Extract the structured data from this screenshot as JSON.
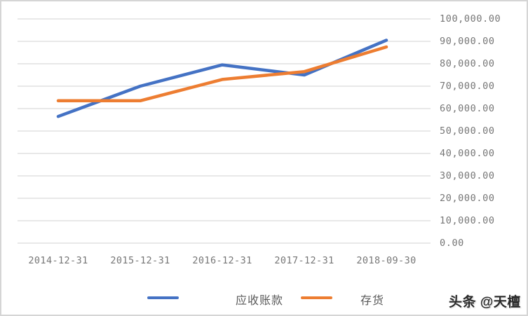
{
  "chart_data": {
    "type": "line",
    "title": "",
    "categories": [
      "2014-12-31",
      "2015-12-31",
      "2016-12-31",
      "2017-12-31",
      "2018-09-30"
    ],
    "series": [
      {
        "name": "应收账款",
        "color": "#4472C4",
        "values": [
          56500,
          70000,
          79500,
          75000,
          90500
        ]
      },
      {
        "name": "存货",
        "color": "#ED7D31",
        "values": [
          63500,
          63500,
          73000,
          76500,
          87500
        ]
      }
    ],
    "y_axis": {
      "side": "right",
      "min": 0,
      "max": 100000,
      "step": 10000,
      "tick_labels": [
        "0.00",
        "10,000.00",
        "20,000.00",
        "30,000.00",
        "40,000.00",
        "50,000.00",
        "60,000.00",
        "70,000.00",
        "80,000.00",
        "90,000.00",
        "100,000.00"
      ]
    },
    "grid": true,
    "legend_position": "bottom"
  },
  "colors": {
    "gridline": "#D9D9D9",
    "axis_text": "#767676",
    "legend_text": "#595959"
  },
  "watermark": {
    "text": "头条 @天檀"
  }
}
